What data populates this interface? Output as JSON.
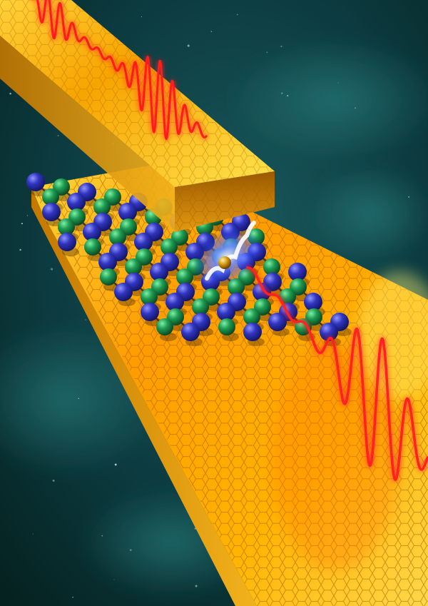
{
  "scene": {
    "kind": "scientific-illustration",
    "colors": {
      "background_dark": "#06262a",
      "background_mid": "#0f4a4f",
      "nebula": "#1d6b6c",
      "gold_light": "#ffe24a",
      "gold_mid": "#f5a300",
      "gold_dark": "#b86a00",
      "atom_blue": "#2a2fa8",
      "atom_green": "#1d9a4a",
      "wave_red": "#ff1a1a",
      "electron_glow": "#1a4cff"
    },
    "lattice": {
      "rows": 10,
      "cols": 11
    }
  }
}
